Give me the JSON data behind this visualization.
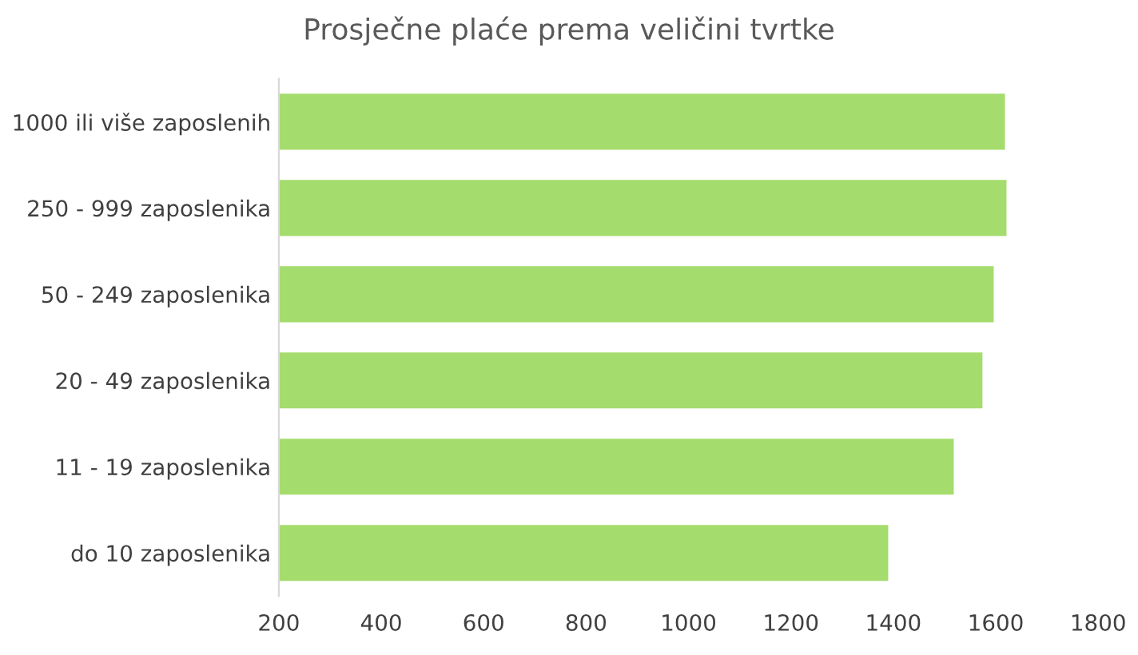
{
  "chart_data": {
    "type": "bar",
    "orientation": "horizontal",
    "title": "Prosječne plaće prema veličini tvrtke",
    "categories": [
      "1000 ili više zaposlenih",
      "250 - 999 zaposlenika",
      "50 - 249 zaposlenika",
      "20 - 49 zaposlenika",
      "11 - 19 zaposlenika",
      "do 10 zaposlenika"
    ],
    "values": [
      1618,
      1621,
      1596,
      1574,
      1518,
      1390
    ],
    "color": "#a5dc6e",
    "xlim": [
      200,
      1800
    ],
    "xticks": [
      200,
      400,
      600,
      800,
      1000,
      1200,
      1400,
      1600,
      1800
    ],
    "grid": false
  }
}
